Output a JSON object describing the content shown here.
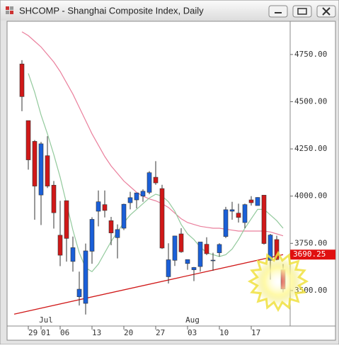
{
  "window_title": "SHCOMP - Shanghai Composite Index, Daily",
  "chart_data": {
    "type": "candlestick",
    "categories": [
      null,
      null,
      "29",
      null,
      "01",
      null,
      null,
      "06",
      null,
      null,
      null,
      null,
      "13",
      null,
      null,
      null,
      null,
      "20",
      null,
      null,
      null,
      null,
      "27",
      null,
      null,
      null,
      null,
      "03",
      null,
      null,
      null,
      null,
      "10",
      null,
      null,
      null,
      null,
      "17",
      null,
      null,
      null,
      null
    ],
    "month_labels": [
      "Jul",
      "Aug"
    ],
    "open": [
      4700,
      4400,
      4290,
      4006,
      4214,
      4058,
      3793,
      3976,
      3654,
      3467,
      3432,
      3708,
      3920,
      3955,
      3870,
      3780,
      3830,
      3965,
      3980,
      4000,
      4020,
      4100,
      4040,
      3573,
      3660,
      3800,
      3643,
      3610,
      3627,
      3745,
      3661,
      3700,
      3786,
      3920,
      3910,
      3860,
      3980,
      3950,
      4005,
      3660,
      3770,
      3610
    ],
    "high": [
      4720,
      4400,
      4297,
      4287,
      4317,
      4080,
      3975,
      3976,
      3786,
      3600,
      3749,
      3888,
      4030,
      4030,
      3890,
      3850,
      3960,
      4023,
      4017,
      4036,
      4132,
      4185,
      4060,
      3750,
      3790,
      3830,
      3664,
      3625,
      3757,
      3782,
      3700,
      3750,
      3943,
      3970,
      3960,
      3960,
      4000,
      3994,
      4006,
      3800,
      3790,
      3640
    ],
    "low": [
      4450,
      4140,
      3875,
      3847,
      4043,
      3828,
      3629,
      3653,
      3600,
      3421,
      3373,
      3642,
      3840,
      3887,
      3740,
      3670,
      3820,
      3930,
      3935,
      3970,
      4010,
      4060,
      3720,
      3537,
      3630,
      3700,
      3610,
      3550,
      3600,
      3688,
      3605,
      3680,
      3778,
      3875,
      3860,
      3830,
      3950,
      3950,
      3743,
      3558,
      3660,
      3490
    ],
    "close": [
      4527,
      4192,
      4053,
      4277,
      4053,
      3912,
      3687,
      3776,
      3727,
      3507,
      3710,
      3877,
      3970,
      3924,
      3805,
      3823,
      3957,
      3992,
      4017,
      4026,
      4124,
      4070,
      3725,
      3663,
      3789,
      3705,
      3664,
      3622,
      3757,
      3695,
      3661,
      3744,
      3928,
      3928,
      3887,
      3955,
      3965,
      3993,
      3749,
      3794,
      3664,
      3508
    ],
    "up_color": "#1a5fd8",
    "down_color": "#d01818",
    "lines": [
      {
        "color": "#ea7f9c",
        "values": [
          4870,
          4850,
          4820,
          4790,
          4750,
          4710,
          4660,
          4600,
          4540,
          4470,
          4400,
          4330,
          4270,
          4210,
          4160,
          4120,
          4080,
          4050,
          4020,
          4000,
          3985,
          3975,
          3960,
          3940,
          3910,
          3880,
          3860,
          3850,
          3840,
          3835,
          3830,
          3830,
          3825,
          3820,
          3815,
          3815,
          3815,
          3815,
          3815,
          3810,
          3800,
          3790
        ]
      },
      {
        "color": "#92c99c",
        "values": [
          null,
          4650,
          4550,
          4430,
          4330,
          4220,
          4100,
          3960,
          3820,
          3700,
          3620,
          3600,
          3640,
          3700,
          3760,
          3810,
          3860,
          3900,
          3930,
          3960,
          3990,
          4010,
          4000,
          3970,
          3920,
          3850,
          3800,
          3770,
          3730,
          3700,
          3690,
          3680,
          3690,
          3720,
          3770,
          3830,
          3880,
          3930,
          3930,
          3900,
          3870,
          3830
        ]
      }
    ],
    "trendline": {
      "color": "#d01818",
      "values": [
        3375,
        3690.25
      ]
    },
    "last_price": 3690.25,
    "ylim": [
      3312,
      4926
    ],
    "yticks": [
      {
        "value": 3500,
        "label": "3500.00"
      },
      {
        "value": 3750,
        "label": "3750.00"
      },
      {
        "value": 4000,
        "label": "4000.00"
      },
      {
        "value": 4250,
        "label": "4250.00"
      },
      {
        "value": 4500,
        "label": "4500.00"
      },
      {
        "value": 4750,
        "label": "4750.00"
      }
    ]
  }
}
